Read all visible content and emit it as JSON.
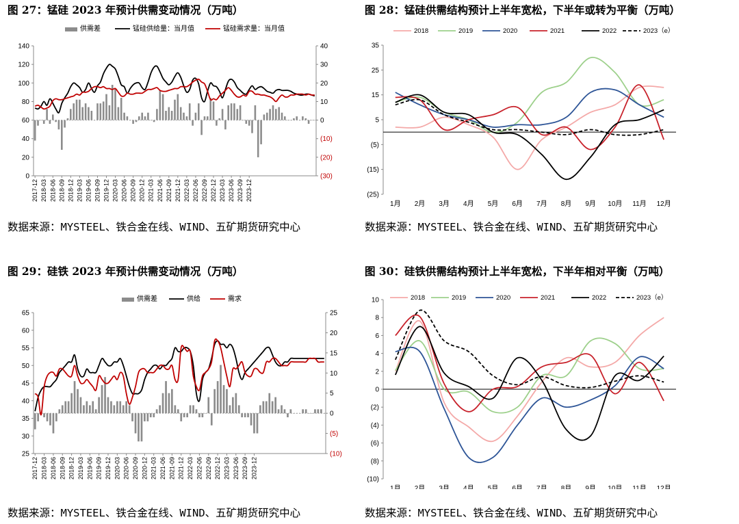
{
  "figures": [
    {
      "title": "图 27：锰硅 2023 年预计供需变动情况（万吨）",
      "source": "数据来源：MYSTEEL、铁合金在线、WIND、五矿期货研究中心"
    },
    {
      "title": "图 28：锰硅供需结构预计上半年宽松，下半年或转为平衡（万吨）",
      "source": "数据来源：MYSTEEL、铁合金在线、WIND、五矿期货研究中心"
    },
    {
      "title": "图 29：硅铁 2023 年预计供需变动情况（万吨）",
      "source": "数据来源：MYSTEEL、铁合金在线、WIND、五矿期货研究中心"
    },
    {
      "title": "图 30：硅铁供需结构预计上半年宽松，下半年相对平衡（万吨）",
      "source": "数据来源：MYSTEEL、铁合金在线、WIND、五矿期货研究中心"
    }
  ],
  "colors": {
    "bar": "#8c8c8c",
    "supply": "#000000",
    "demand": "#c00000",
    "neg_axis": "#c00000"
  },
  "chart_data": [
    {
      "type": "bar",
      "title": "图 27：锰硅 2023 年预计供需变动情况（万吨）",
      "legend": [
        "供需差",
        "锰硅供给量：当月值",
        "锰硅需求量：当月值"
      ],
      "x_ticks": [
        "2017-12",
        "2018-03",
        "2018-06",
        "2018-09",
        "2018-12",
        "2019-03",
        "2019-06",
        "2019-09",
        "2019-12",
        "2020-03",
        "2020-06",
        "2020-09",
        "2020-12",
        "2021-03",
        "2021-06",
        "2021-09",
        "2021-12",
        "2022-03",
        "2022-06",
        "2022-09",
        "2022-12",
        "2023-03",
        "2023-06",
        "2023-09",
        "2023-12"
      ],
      "left_axis": {
        "range": [
          0,
          140
        ],
        "ticks": [
          "0",
          "20",
          "40",
          "60",
          "80",
          "100",
          "120",
          "140"
        ]
      },
      "right_axis": {
        "range": [
          -30,
          40
        ],
        "ticks": [
          "(30)",
          "(20)",
          "(10)",
          "0",
          "10",
          "20",
          "30",
          "40"
        ]
      },
      "series": [
        {
          "name": "供需差",
          "type": "bar",
          "axis": "right",
          "values": [
            -11,
            -3,
            0,
            -2,
            6,
            -2,
            3,
            -1,
            -5,
            -16,
            -4,
            1,
            6,
            9,
            11,
            11,
            7,
            9,
            7,
            5,
            0,
            9,
            9,
            10,
            14,
            8,
            19,
            17,
            7,
            12,
            4,
            2,
            0,
            -2,
            -1,
            2,
            4,
            2,
            4,
            0,
            -1,
            6,
            16,
            14,
            5,
            7,
            5,
            11,
            14,
            7,
            4,
            2,
            9,
            -3,
            4,
            9,
            -8,
            2,
            2,
            12,
            10,
            -3,
            1,
            6,
            -5,
            8,
            9,
            9,
            6,
            8,
            0,
            -2,
            -3,
            -7,
            8,
            -20,
            -13,
            3,
            4,
            6,
            8,
            6,
            7,
            4,
            2,
            0,
            0,
            1,
            2,
            0,
            2,
            1,
            -2,
            0,
            0
          ]
        },
        {
          "name": "锰硅供给量：当月值",
          "type": "line",
          "axis": "left",
          "values": [
            73,
            72,
            75,
            80,
            76,
            83,
            78,
            72,
            68,
            78,
            84,
            89,
            96,
            100,
            98,
            95,
            90,
            93,
            100,
            94,
            90,
            97,
            101,
            110,
            116,
            120,
            118,
            115,
            107,
            98,
            96,
            89,
            94,
            98,
            100,
            100,
            95,
            93,
            101,
            111,
            117,
            118,
            112,
            105,
            101,
            98,
            101,
            107,
            111,
            106,
            97,
            90,
            93,
            103,
            105,
            99,
            84,
            80,
            91,
            100,
            97,
            96,
            91,
            84,
            93,
            102,
            104,
            101,
            95,
            92,
            89,
            88,
            93,
            97,
            93,
            95,
            96,
            94,
            91,
            90,
            89,
            92,
            93,
            92,
            92,
            92,
            91,
            89,
            88,
            87,
            87,
            88,
            88,
            87,
            86
          ]
        },
        {
          "name": "锰硅需求量：当月值",
          "type": "line",
          "axis": "left",
          "values": [
            75,
            76,
            74,
            72,
            73,
            75,
            81,
            83,
            82,
            82,
            83,
            84,
            85,
            86,
            88,
            87,
            90,
            90,
            91,
            94,
            96,
            96,
            95,
            96,
            94,
            94,
            93,
            94,
            90,
            86,
            86,
            89,
            88,
            88,
            89,
            89,
            89,
            91,
            93,
            93,
            94,
            95,
            92,
            91,
            91,
            92,
            93,
            94,
            94,
            96,
            96,
            96,
            98,
            101,
            103,
            104,
            101,
            99,
            91,
            82,
            83,
            82,
            86,
            89,
            92,
            95,
            92,
            88,
            85,
            85,
            87,
            86,
            91,
            91,
            88,
            88,
            87,
            87,
            86,
            85,
            83,
            80,
            84,
            87,
            85,
            85,
            87,
            87,
            88,
            88,
            88,
            87,
            88,
            87,
            87
          ]
        }
      ]
    },
    {
      "type": "line",
      "title": "图 28：锰硅供需结构预计上半年宽松，下半年或转为平衡（万吨）",
      "categories": [
        "1月",
        "2月",
        "3月",
        "4月",
        "5月",
        "6月",
        "7月",
        "8月",
        "9月",
        "10月",
        "11月",
        "12月"
      ],
      "y_axis": {
        "range": [
          -25,
          35
        ],
        "ticks": [
          "(25)",
          "(15)",
          "(5)",
          "5",
          "15",
          "25",
          "35"
        ]
      },
      "series": [
        {
          "name": "2018",
          "color": "#f4a9a8",
          "values": [
            2,
            2,
            6,
            3,
            -2,
            -15,
            -3,
            2,
            8,
            11,
            18,
            18
          ]
        },
        {
          "name": "2019",
          "color": "#9dd08b",
          "values": [
            12,
            14,
            8,
            5,
            0,
            4,
            16,
            20,
            30,
            24,
            11,
            13
          ]
        },
        {
          "name": "2020",
          "color": "#2e5597",
          "values": [
            16,
            11,
            7,
            5,
            2,
            3,
            3,
            6,
            16,
            17,
            11,
            6
          ]
        },
        {
          "name": "2021",
          "color": "#c8222b",
          "values": [
            14,
            13,
            1,
            5,
            7,
            10,
            -1,
            2,
            -7,
            2,
            19,
            -3
          ]
        },
        {
          "name": "2022",
          "color": "#000000",
          "values": [
            12,
            15,
            8,
            7,
            0,
            -1,
            -9,
            -19,
            -10,
            3,
            5,
            9
          ]
        },
        {
          "name": "2023（e）",
          "color": "#000000",
          "dashed": true,
          "values": [
            11,
            13,
            7,
            4,
            1,
            1,
            0,
            -1,
            1,
            -1,
            -1,
            1
          ]
        }
      ]
    },
    {
      "type": "bar",
      "title": "图 29：硅铁 2023 年预计供需变动情况（万吨）",
      "legend": [
        "供需差",
        "供给",
        "需求"
      ],
      "x_ticks": [
        "2017-12",
        "2018-03",
        "2018-06",
        "2018-09",
        "2018-12",
        "2019-03",
        "2019-06",
        "2019-09",
        "2019-12",
        "2020-03",
        "2020-06",
        "2020-09",
        "2020-12",
        "2021-03",
        "2021-06",
        "2021-09",
        "2021-12",
        "2022-03",
        "2022-06",
        "2022-09",
        "2022-12",
        "2023-03",
        "2023-06",
        "2023-09",
        "2023-12"
      ],
      "left_axis": {
        "range": [
          25,
          65
        ],
        "ticks": [
          "25",
          "30",
          "35",
          "40",
          "45",
          "50",
          "55",
          "60",
          "65"
        ]
      },
      "right_axis": {
        "range": [
          -10,
          25
        ],
        "ticks": [
          "(10)",
          "(5)",
          "0",
          "5",
          "10",
          "15",
          "20",
          "25"
        ]
      },
      "series": [
        {
          "name": "供需差",
          "type": "bar",
          "axis": "right",
          "values": [
            -4,
            -2,
            0,
            -1,
            -2,
            -3,
            -5,
            -2,
            1,
            2,
            3,
            3,
            5,
            8,
            6,
            4,
            2,
            3,
            2,
            3,
            1,
            4,
            7,
            9,
            4,
            3,
            2,
            3,
            3,
            2,
            3,
            2,
            -2,
            -5,
            -7,
            -7,
            -2,
            -2,
            -1,
            -1,
            1,
            2,
            5,
            8,
            5,
            6,
            2,
            1,
            -2,
            -1,
            -1,
            2,
            2,
            1,
            -1,
            -1,
            0,
            4,
            -3,
            6,
            8,
            12,
            7,
            6,
            2,
            4,
            5,
            2,
            -1,
            -1,
            -1,
            -3,
            -5,
            -5,
            2,
            3,
            3,
            5,
            3,
            4,
            1,
            2,
            1,
            -1,
            1,
            0,
            0,
            0,
            1,
            1,
            0,
            0,
            1,
            1,
            1,
            0
          ]
        },
        {
          "name": "供给",
          "type": "line",
          "axis": "left",
          "values": [
            37,
            41,
            43,
            44,
            44,
            44,
            45,
            46,
            48,
            49,
            50,
            51,
            51,
            53,
            49,
            47,
            47,
            49,
            48,
            48,
            48,
            50,
            52,
            51,
            50,
            50,
            51,
            51,
            52,
            50,
            47,
            44,
            42,
            42,
            42,
            43,
            46,
            48,
            49,
            50,
            50,
            49,
            50,
            50,
            51,
            52,
            55,
            54,
            54,
            55,
            55,
            54,
            50,
            42,
            40,
            46,
            48,
            49,
            52,
            56,
            57,
            56,
            56,
            55,
            56,
            55,
            52,
            48,
            46,
            48,
            49,
            50,
            51,
            52,
            53,
            54,
            55,
            55,
            53,
            51,
            50,
            50,
            51,
            51,
            52,
            52,
            52,
            52,
            52,
            52,
            52,
            52,
            52,
            52,
            52,
            52
          ]
        },
        {
          "name": "需求",
          "type": "line",
          "axis": "left",
          "values": [
            42,
            41,
            36,
            44,
            47,
            48,
            48,
            47,
            49,
            49,
            48,
            47,
            47,
            50,
            47,
            45,
            45,
            46,
            45,
            44,
            43,
            47,
            46,
            45,
            45,
            46,
            47,
            46,
            48,
            47,
            42,
            39,
            41,
            44,
            48,
            49,
            49,
            48,
            48,
            48,
            49,
            50,
            50,
            49,
            49,
            50,
            46,
            46,
            55,
            55,
            54,
            54,
            47,
            44,
            43,
            47,
            48,
            49,
            51,
            57,
            57,
            55,
            51,
            47,
            44,
            49,
            49,
            50,
            51,
            48,
            47,
            47,
            49,
            49,
            48,
            48,
            51,
            51,
            52,
            52,
            51,
            50,
            50,
            50,
            51,
            51,
            51,
            51,
            51,
            51,
            52,
            52,
            52,
            51,
            51,
            51
          ]
        }
      ]
    },
    {
      "type": "line",
      "title": "图 30：硅铁供需结构预计上半年宽松，下半年相对平衡（万吨）",
      "categories": [
        "1月",
        "2月",
        "3月",
        "4月",
        "5月",
        "6月",
        "7月",
        "8月",
        "9月",
        "10月",
        "11月",
        "12月"
      ],
      "y_axis": {
        "range": [
          -10,
          10
        ],
        "ticks": [
          "(10)",
          "(8)",
          "(6)",
          "(4)",
          "(2)",
          "0",
          "2",
          "4",
          "6",
          "8",
          "10"
        ]
      },
      "series": [
        {
          "name": "2018",
          "color": "#f4a9a8",
          "values": [
            2,
            7.6,
            -1.5,
            -4.2,
            -5.8,
            -3,
            0.8,
            3.5,
            2.5,
            3,
            6,
            8
          ]
        },
        {
          "name": "2019",
          "color": "#9dd08b",
          "values": [
            2.1,
            5.4,
            0,
            -0.3,
            -2.5,
            -2,
            1.5,
            1.5,
            5.4,
            5.1,
            2.3,
            2.3
          ]
        },
        {
          "name": "2020",
          "color": "#2e5597",
          "values": [
            4.2,
            4.2,
            -2.2,
            -7.6,
            -7.6,
            -4,
            -1,
            -2,
            -1.2,
            0.4,
            3.6,
            2.3
          ]
        },
        {
          "name": "2021",
          "color": "#c8222b",
          "values": [
            6,
            8.1,
            0.6,
            -2.5,
            0,
            0.3,
            2.5,
            3,
            3.8,
            -0.5,
            3,
            -1.3
          ]
        },
        {
          "name": "2022",
          "color": "#000000",
          "values": [
            1.6,
            7,
            1.8,
            0.3,
            -1,
            3.5,
            1,
            -4.5,
            -5.2,
            1.5,
            1,
            3.7
          ]
        },
        {
          "name": "2023（e）",
          "color": "#000000",
          "dashed": true,
          "values": [
            3.3,
            8.8,
            5.4,
            4.2,
            1.5,
            0.5,
            1.4,
            0.4,
            0.2,
            0.9,
            1.5,
            0.8
          ]
        }
      ]
    }
  ]
}
